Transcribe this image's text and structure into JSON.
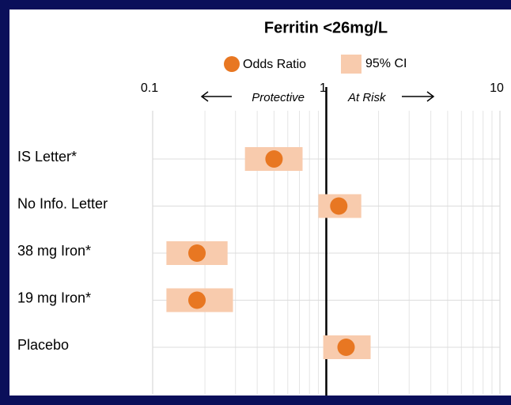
{
  "chart_data": {
    "type": "forest",
    "title": "Ferritin <26mg/L",
    "categories": [
      "IS Letter*",
      "No Info. Letter",
      "38 mg Iron*",
      "19 mg Iron*",
      "Placebo"
    ],
    "series": [
      {
        "name": "Odds Ratio",
        "color": "#e87722",
        "values": [
          0.5,
          1.18,
          0.18,
          0.18,
          1.3
        ]
      },
      {
        "name": "95% CI",
        "color": "#f8cbad",
        "low": [
          0.34,
          0.9,
          0.12,
          0.12,
          0.96
        ],
        "high": [
          0.73,
          1.59,
          0.27,
          0.29,
          1.8
        ]
      }
    ],
    "xlim": [
      0.1,
      10
    ],
    "xticks": [
      0.1,
      1,
      10
    ],
    "log_x": true,
    "grid": true,
    "reference_line": 1,
    "annotations": [
      "Protective",
      "At Risk"
    ]
  }
}
